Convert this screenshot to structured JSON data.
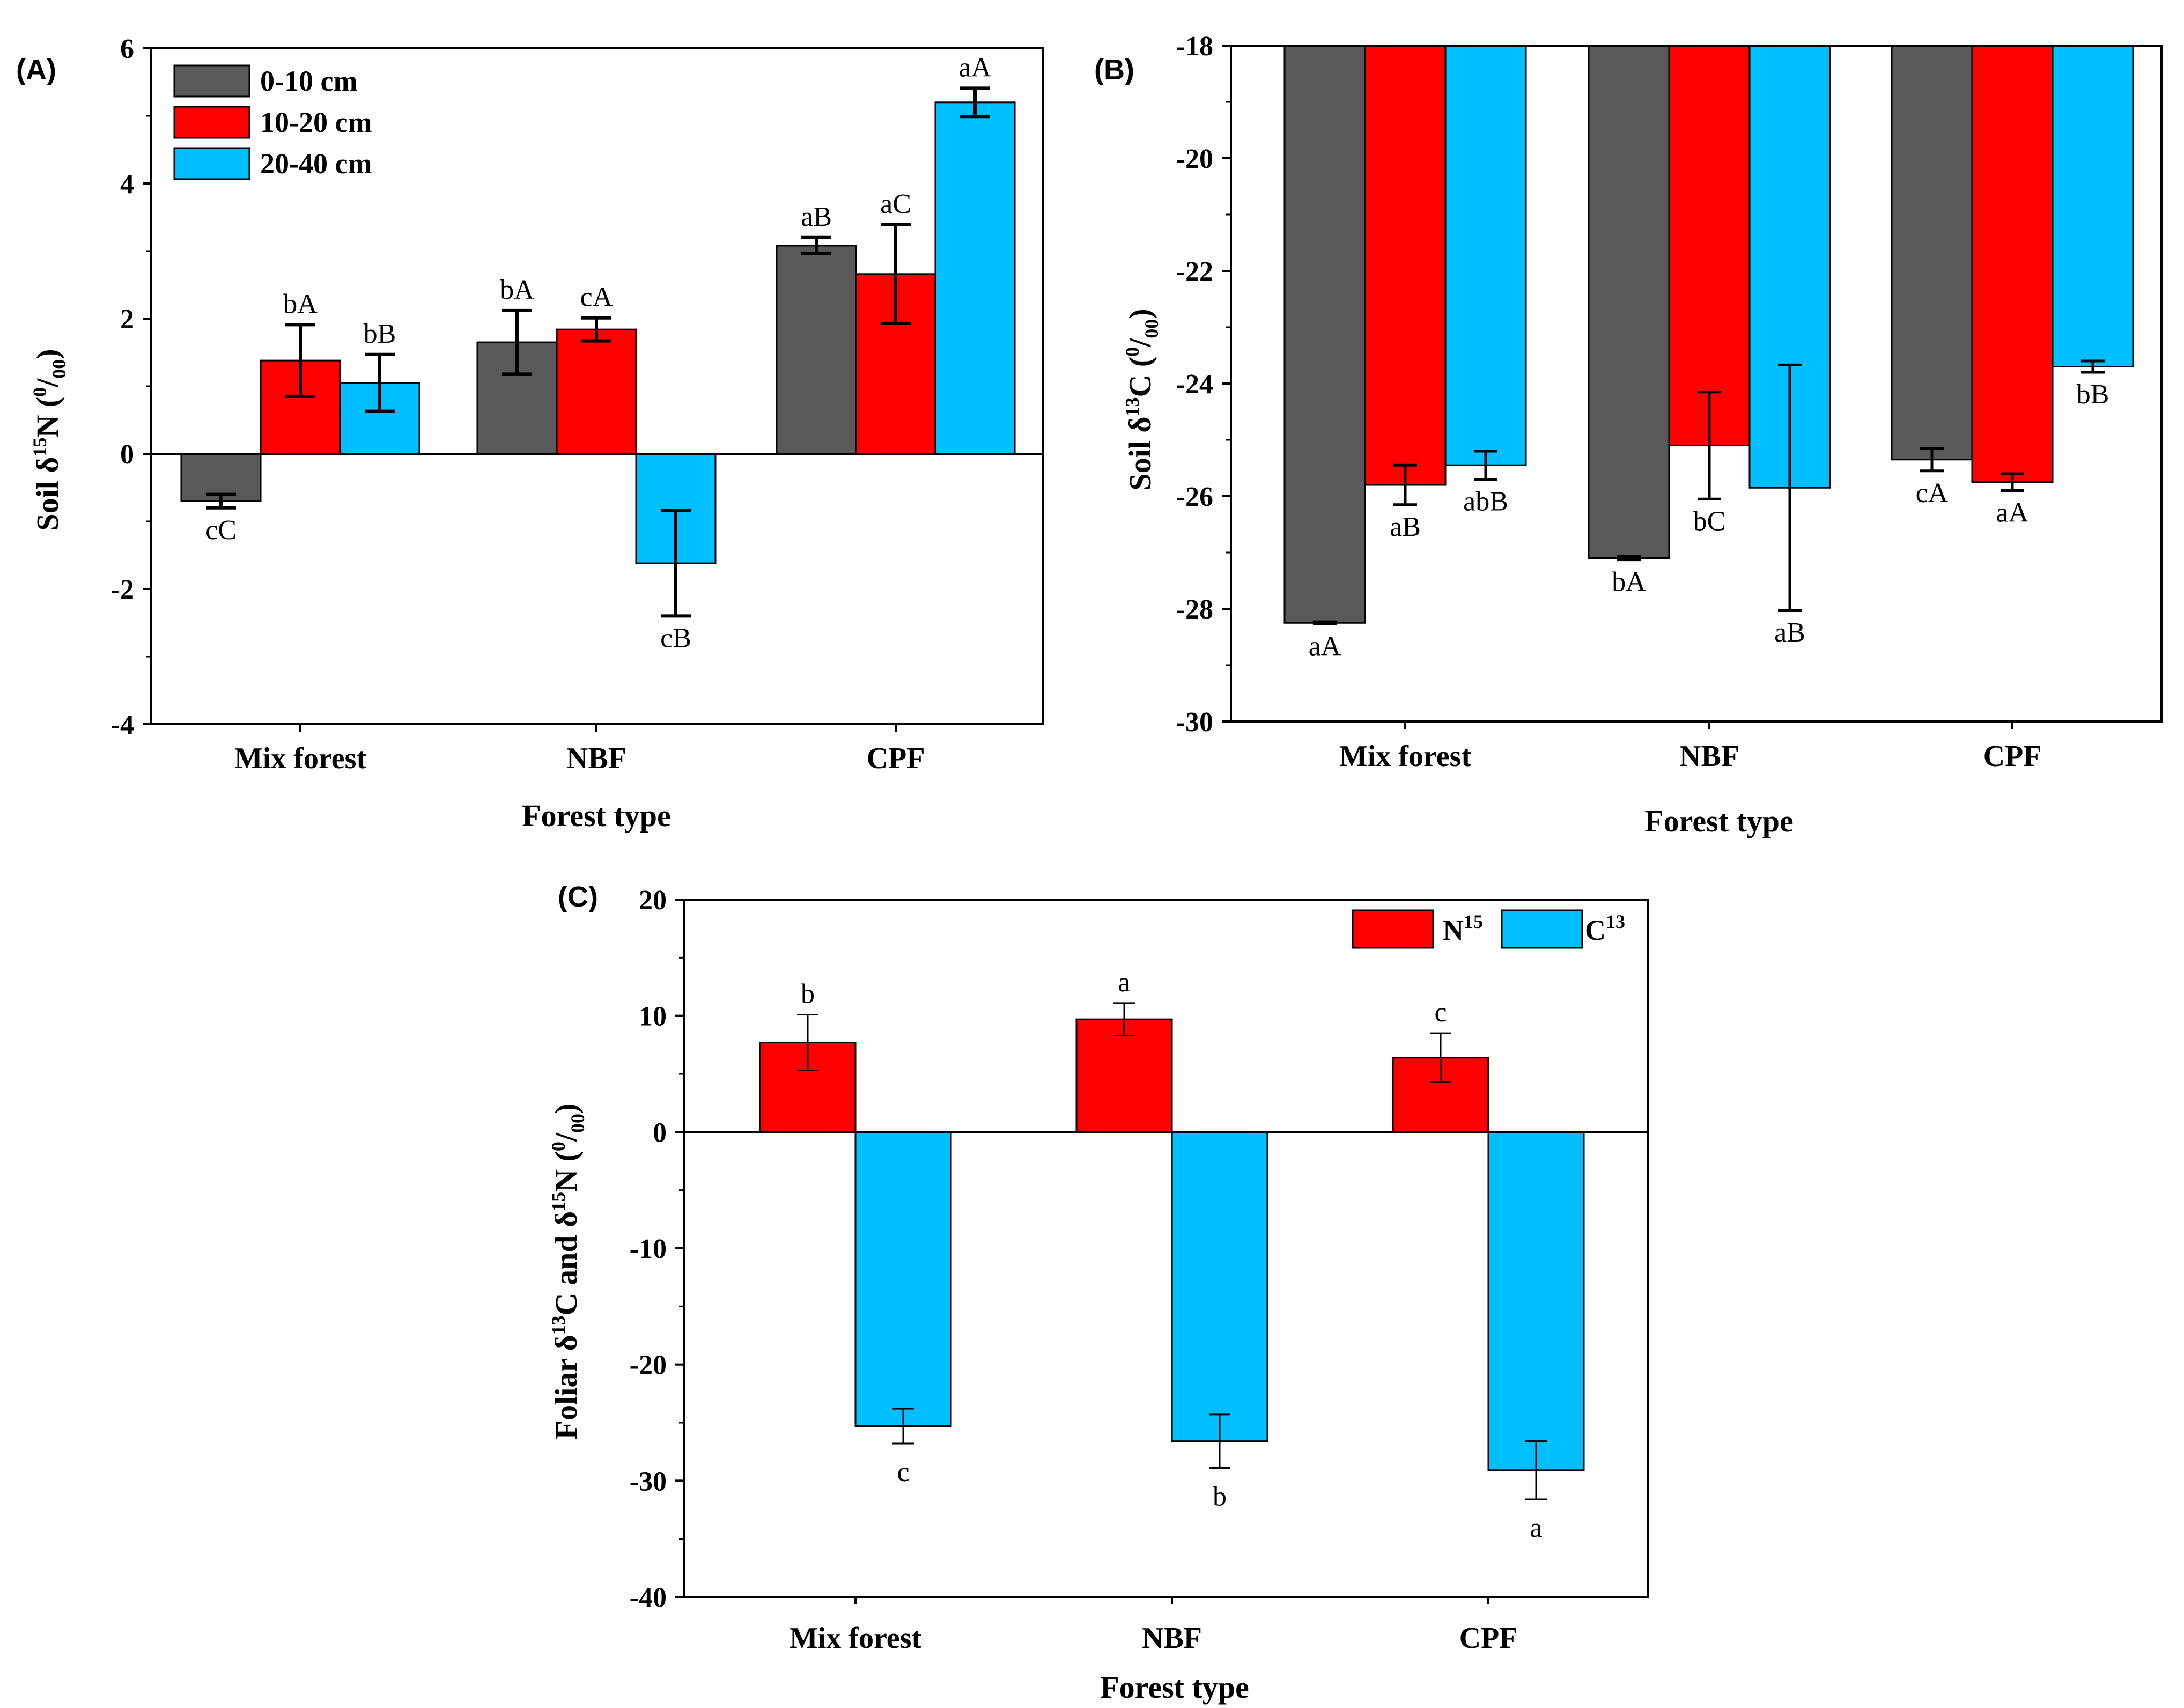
{
  "chart_data": [
    {
      "id": "A",
      "type": "bar",
      "panel_label": "(A)",
      "xlabel": "Forest type",
      "ylabel": "Soil δ15N (0/00)",
      "categories": [
        "Mix forest",
        "NBF",
        "CPF"
      ],
      "ylim": [
        -4,
        6
      ],
      "yticks": [
        -4,
        -2,
        0,
        2,
        4,
        6
      ],
      "ytick_labels": [
        "-4",
        "-2",
        "0",
        "2",
        "4",
        "6"
      ],
      "legend_position": "top-left",
      "series": [
        {
          "name": "0-10 cm",
          "color": "#595959",
          "values": [
            -0.7,
            1.65,
            3.08
          ],
          "errors": [
            0.1,
            0.47,
            0.12
          ],
          "labels": [
            "cC",
            "bA",
            "aB"
          ]
        },
        {
          "name": "10-20 cm",
          "color": "#ff0000",
          "values": [
            1.38,
            1.84,
            2.66
          ],
          "errors": [
            0.53,
            0.17,
            0.73
          ],
          "labels": [
            "bA",
            "cA",
            "aC"
          ]
        },
        {
          "name": "20-40 cm",
          "color": "#00bfff",
          "values": [
            1.05,
            -1.62,
            5.2
          ],
          "errors": [
            0.42,
            0.78,
            0.21
          ],
          "labels": [
            "bB",
            "cB",
            "aA"
          ]
        }
      ]
    },
    {
      "id": "B",
      "type": "bar",
      "panel_label": "(B)",
      "xlabel": "Forest type",
      "ylabel": "Soil δ13C (0/00)",
      "categories": [
        "Mix forest",
        "NBF",
        "CPF"
      ],
      "ylim": [
        -30,
        -18
      ],
      "yticks": [
        -30,
        -28,
        -26,
        -24,
        -22,
        -20,
        -18
      ],
      "ytick_labels": [
        "-30",
        "-28",
        "-26",
        "-24",
        "-22",
        "-20",
        "-18"
      ],
      "series": [
        {
          "name": "0-10 cm",
          "color": "#595959",
          "values": [
            -28.25,
            -27.1,
            -25.35
          ],
          "errors": [
            0.02,
            0.03,
            0.2
          ],
          "labels": [
            "aA",
            "bA",
            "cA"
          ]
        },
        {
          "name": "10-20 cm",
          "color": "#ff0000",
          "values": [
            -25.8,
            -25.1,
            -25.75
          ],
          "errors": [
            0.35,
            0.95,
            0.15
          ],
          "labels": [
            "aB",
            "bC",
            "aA"
          ]
        },
        {
          "name": "20-40 cm",
          "color": "#00bfff",
          "values": [
            -25.45,
            -25.85,
            -23.7
          ],
          "errors": [
            0.25,
            2.18,
            0.1
          ],
          "labels": [
            "abB",
            "aB",
            "bB"
          ]
        }
      ]
    },
    {
      "id": "C",
      "type": "bar",
      "panel_label": "(C)",
      "xlabel": "Forest type",
      "ylabel": "Foliar δ13C and δ15N (0/00)",
      "categories": [
        "Mix forest",
        "NBF",
        "CPF"
      ],
      "ylim": [
        -40,
        20
      ],
      "yticks": [
        -40,
        -30,
        -20,
        -10,
        0,
        10,
        20
      ],
      "ytick_labels": [
        "-40",
        "-30",
        "-20",
        "-10",
        "0",
        "10",
        "20"
      ],
      "legend_position": "top-right",
      "series": [
        {
          "name": "N15",
          "color": "#ff0000",
          "values": [
            7.7,
            9.7,
            6.4
          ],
          "errors": [
            2.4,
            1.4,
            2.1
          ],
          "labels": [
            "b",
            "a",
            "c"
          ]
        },
        {
          "name": "C13",
          "color": "#00bfff",
          "values": [
            -25.3,
            -26.6,
            -29.1
          ],
          "errors": [
            1.5,
            2.3,
            2.5
          ],
          "labels": [
            "c",
            "b",
            "a"
          ]
        }
      ]
    }
  ],
  "axis_text": {
    "soil_prefix": "Soil δ",
    "foliar_prefix": "Foliar δ",
    "and_delta": "C and δ",
    "iso_15": "15",
    "iso_13": "13",
    "el_N": "N",
    "el_C": "C",
    "open_paren": " (",
    "permil_0": "0",
    "permil_slash": "/",
    "permil_00": "00",
    "close_paren": ")"
  },
  "legend_C": {
    "n_base": "N",
    "n_sup": "15",
    "c_base": "C",
    "c_sup": "13"
  }
}
